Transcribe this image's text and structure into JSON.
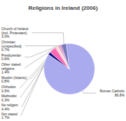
{
  "chart_data": {
    "type": "pie",
    "title": "Religions in Ireland (2006)",
    "categories": [
      "Roman Catholic",
      "Not stated",
      "No religion",
      "Other stated\nreligions",
      "Methodist",
      "Orthodox",
      "Muslim (Islamic)",
      "Presbyterian",
      "Christian\n(unspecified)",
      "Church of Ireland\n(incl. Protestant)"
    ],
    "values": [
      86.8,
      1.7,
      4.4,
      1.4,
      0.3,
      0.5,
      0.8,
      0.6,
      0.7,
      3.0
    ],
    "value_labels": [
      "86.8%",
      "1.7%",
      "4.4%",
      "1.4%",
      "0.3%",
      "0.5%",
      "0.8%",
      "0.6%",
      "0.7%",
      "3.0%"
    ],
    "colors": [
      "#aaaaee",
      "#000080",
      "#ff69b4",
      "#ffcccc",
      "#ccccdd",
      "#ddbbdd",
      "#cc6699",
      "#dd88bb",
      "#993399",
      "#7777bb"
    ],
    "data_labels": true
  }
}
